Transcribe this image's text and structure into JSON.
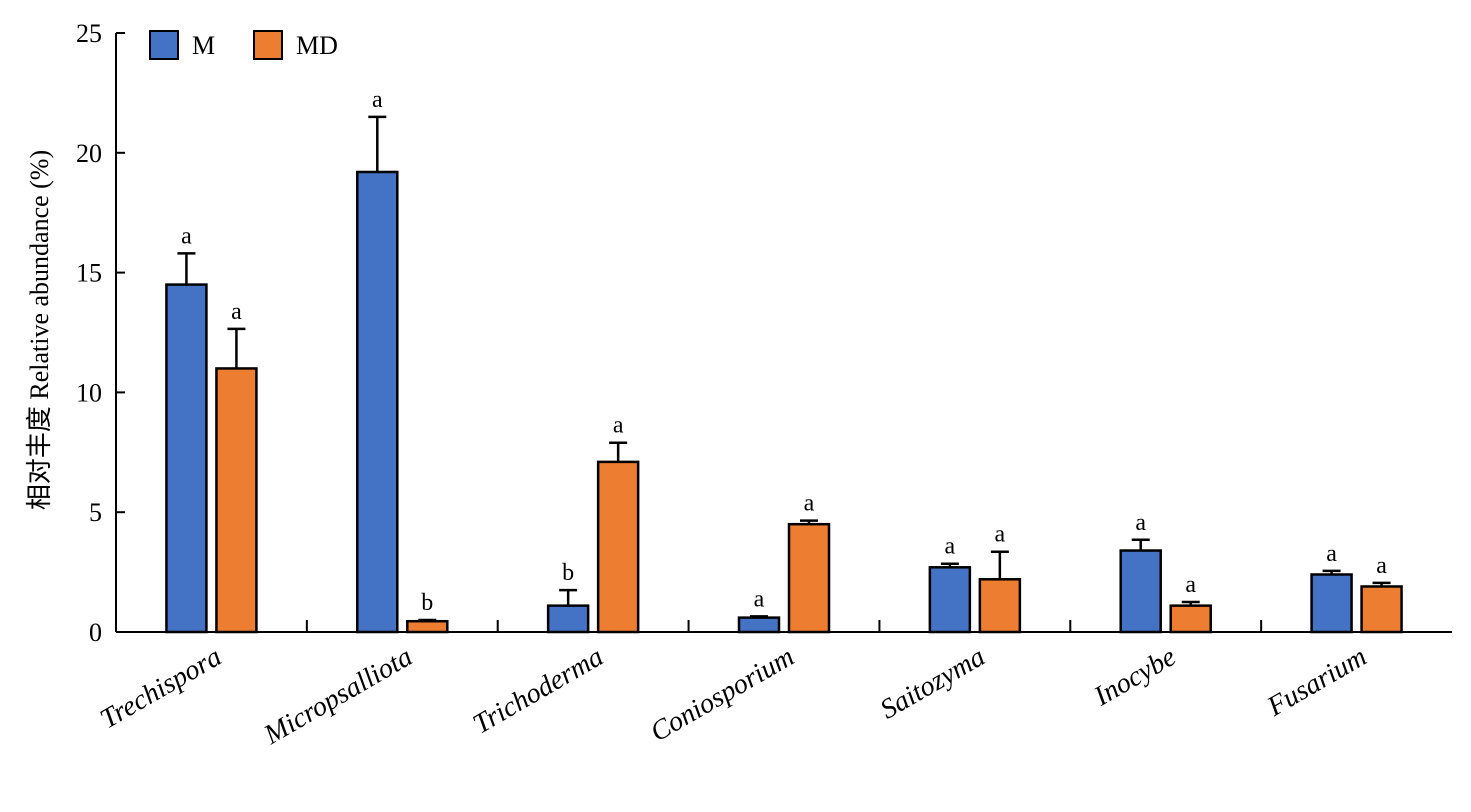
{
  "chart_data": {
    "type": "bar",
    "ylabel": "相对丰度 Relative abundance (%)",
    "ylim": [
      0,
      25
    ],
    "yticks": [
      0,
      5,
      10,
      15,
      20,
      25
    ],
    "grid": false,
    "legend_position": "top-left",
    "categories": [
      "Trechispora",
      "Micropsalliota",
      "Trichoderma",
      "Coniosporium",
      "Saitozyma",
      "Inocybe",
      "Fusarium"
    ],
    "series": [
      {
        "name": "M",
        "color": "#4472C4",
        "values": [
          14.5,
          19.2,
          1.1,
          0.6,
          2.7,
          3.4,
          2.4
        ],
        "errors": [
          1.3,
          2.3,
          0.65,
          0.05,
          0.15,
          0.45,
          0.15
        ],
        "significance": [
          "a",
          "a",
          "b",
          "a",
          "a",
          "a",
          "a"
        ]
      },
      {
        "name": "MD",
        "color": "#ED7D31",
        "values": [
          11.0,
          0.45,
          7.1,
          4.5,
          2.2,
          1.1,
          1.9
        ],
        "errors": [
          1.65,
          0.05,
          0.8,
          0.15,
          1.15,
          0.15,
          0.15
        ],
        "significance": [
          "a",
          "b",
          "a",
          "a",
          "a",
          "a",
          "a"
        ]
      }
    ]
  }
}
